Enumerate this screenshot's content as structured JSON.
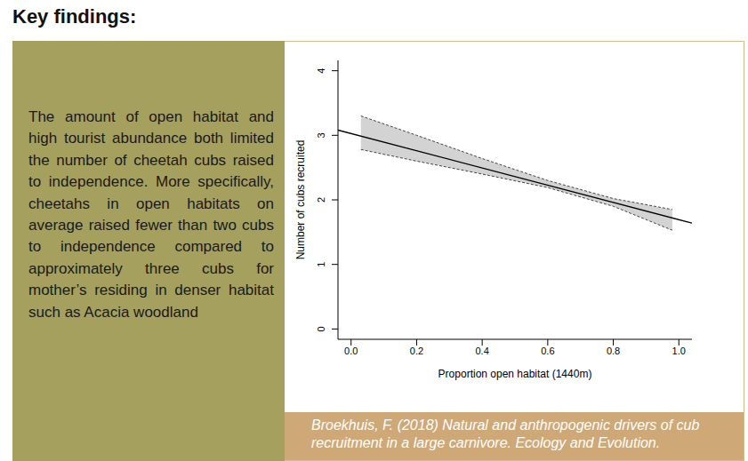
{
  "header": {
    "title": "Key findings:"
  },
  "panel_text": "The amount of open habitat and high tourist abundance both limited the number of cheetah cubs raised to independence. More specifically, cheetahs in open habitats on average raised fewer than two cubs to independence compared to approximately three cubs for mother’s residing in denser habitat such as Acacia woodland",
  "caption": "Broekhuis, F. (2018) Natural and anthropogenic drivers of cub recruitment in a large carnivore. Ecology and Evolution.",
  "chart_data": {
    "type": "line",
    "x_label": "Proportion open habitat (1440m)",
    "y_label": "Number of cubs recruited",
    "series": [
      {
        "type": "area",
        "color": "#d3d3d3",
        "line_style": "dashed",
        "x": [
          0.03,
          0.2,
          0.4,
          0.6,
          0.8,
          0.98
        ],
        "lower": [
          2.78,
          2.6,
          2.4,
          2.19,
          1.9,
          1.53
        ],
        "upper": [
          3.3,
          3.0,
          2.64,
          2.3,
          2.02,
          1.85
        ]
      },
      {
        "type": "line",
        "color": "#000000",
        "line_style": "solid",
        "x": [
          -0.04,
          1.04
        ],
        "values": [
          3.08,
          1.64
        ]
      }
    ],
    "xlim": [
      -0.04,
      1.04
    ],
    "ylim": [
      -0.16,
      4.16
    ],
    "xticks": [
      {
        "value": 0,
        "label": "0.0"
      },
      0.2,
      0.4,
      0.6,
      0.8,
      {
        "value": 1,
        "label": "1.0"
      }
    ],
    "yticks": [
      0,
      1,
      2,
      3,
      4
    ],
    "grid": false
  }
}
